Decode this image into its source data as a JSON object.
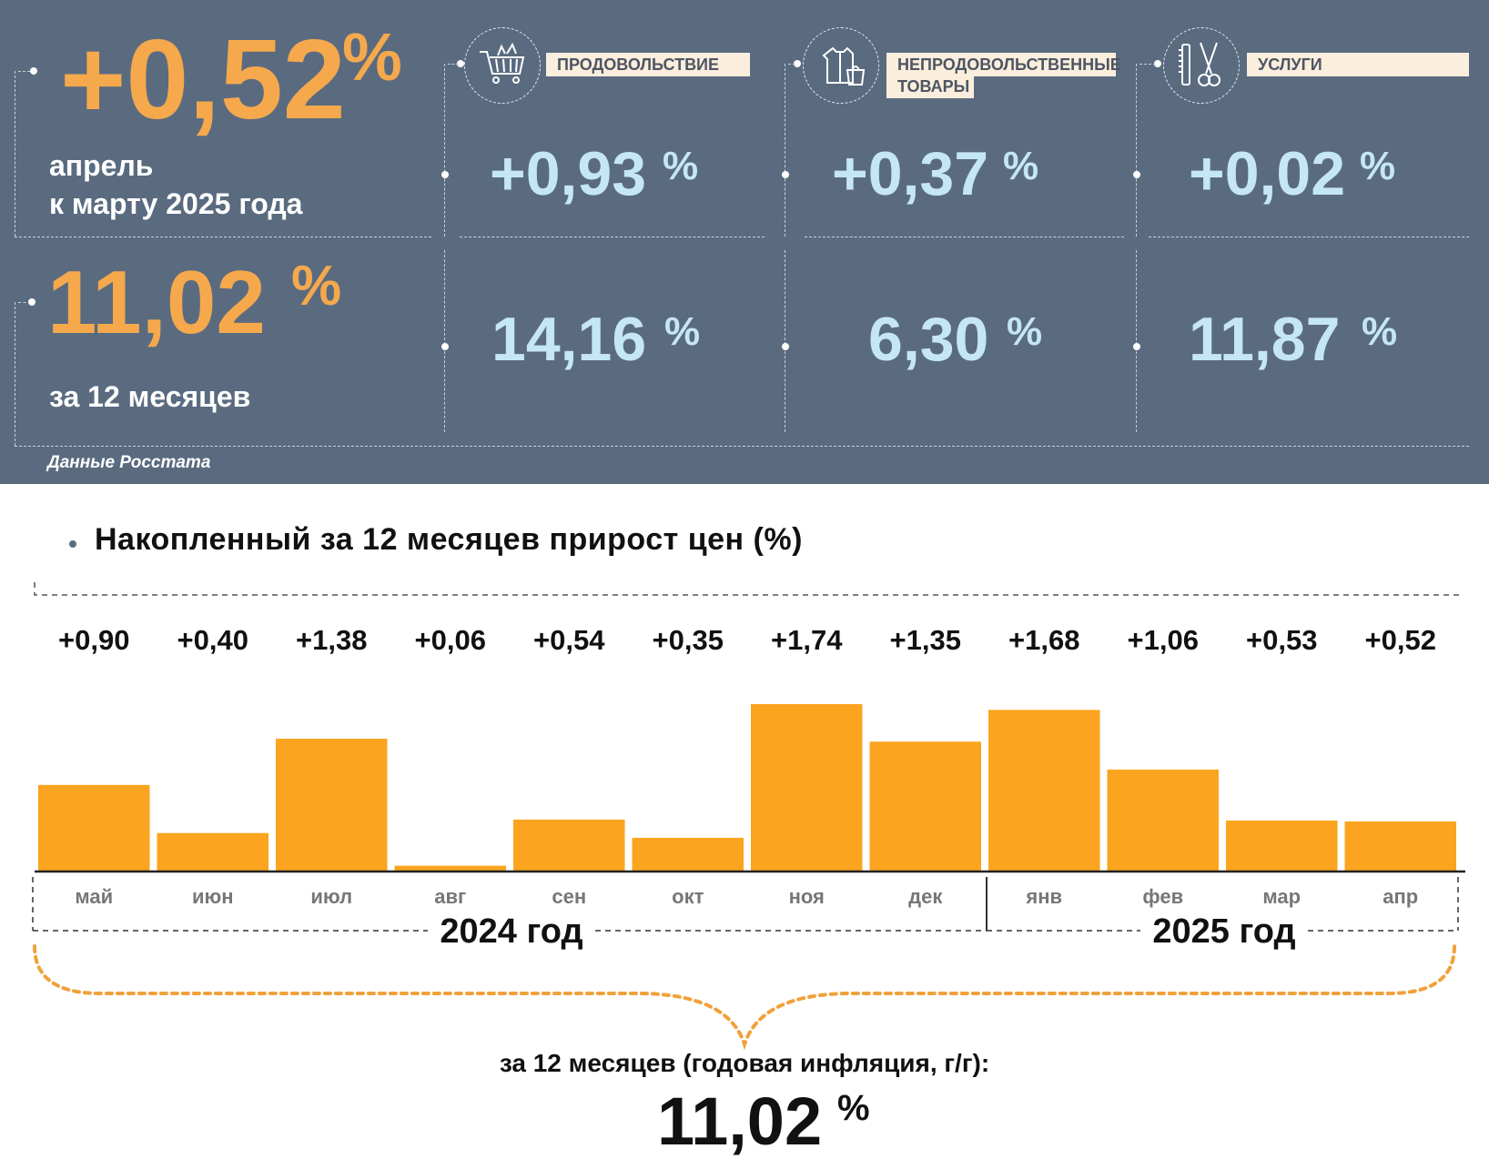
{
  "header": {
    "monthly": {
      "value": "+0,52",
      "pct": "%",
      "line1": "апрель",
      "line2": "к марту 2025 года"
    },
    "annual": {
      "value": "11,02",
      "pct": "%",
      "label": "за 12 месяцев"
    },
    "source": "Данные Росстата",
    "categories": [
      {
        "label_line1": "ПРОДОВОЛЬСТВИЕ",
        "label_line2": "",
        "icon": "shopping-cart-icon",
        "monthly": "+0,93",
        "annual": "14,16",
        "pct": "%"
      },
      {
        "label_line1": "НЕПРОДОВОЛЬСТВЕННЫЕ",
        "label_line2": "ТОВАРЫ",
        "icon": "clothing-icon",
        "monthly": "+0,37",
        "annual": "6,30",
        "pct": "%"
      },
      {
        "label_line1": "УСЛУГИ",
        "label_line2": "",
        "icon": "scissors-comb-icon",
        "monthly": "+0,02",
        "annual": "11,87",
        "pct": "%"
      }
    ]
  },
  "colors": {
    "panel": "#5a6b80",
    "accent": "#f5a94c",
    "bar": "#fba41f",
    "value_blue": "#c5e6f5"
  },
  "chart_data": {
    "type": "bar",
    "title": "Накопленный за 12 месяцев прирост цен (%)",
    "categories": [
      "май",
      "июн",
      "июл",
      "авг",
      "сен",
      "окт",
      "ноя",
      "дек",
      "янв",
      "фев",
      "мар",
      "апр"
    ],
    "values": [
      0.9,
      0.4,
      1.38,
      0.06,
      0.54,
      0.35,
      1.74,
      1.35,
      1.68,
      1.06,
      0.53,
      0.52
    ],
    "value_labels": [
      "+0,90",
      "+0,40",
      "+1,38",
      "+0,06",
      "+0,54",
      "+0,35",
      "+1,74",
      "+1,35",
      "+1,68",
      "+1,06",
      "+0,53",
      "+0,52"
    ],
    "year_groups": [
      {
        "label": "2024 год",
        "from": 0,
        "to": 7
      },
      {
        "label": "2025 год",
        "from": 8,
        "to": 11
      }
    ],
    "ylim": [
      0,
      1.74
    ],
    "grid": false
  },
  "summary": {
    "label": "за 12 месяцев (годовая инфляция, г/г):",
    "value": "11,02",
    "pct": "%"
  }
}
